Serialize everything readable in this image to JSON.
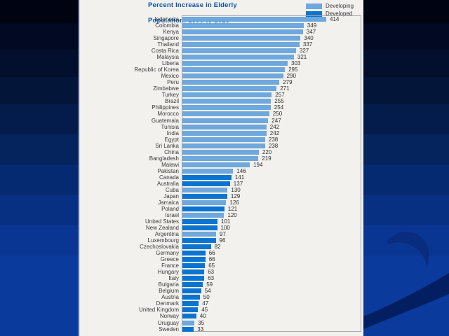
{
  "slide": {
    "title_line1": "Percent Increase in Elderly",
    "title_line2": "Population:  1990 to 2025"
  },
  "colors": {
    "developing": "#6FA8DC",
    "developed": "#0B74D1",
    "title": "#0A55A8",
    "panel_bg": "#F2F1EE",
    "background_top": "#000311",
    "background_bottom": "#0B3A9D"
  },
  "chart_data": {
    "type": "bar",
    "orientation": "horizontal",
    "title": "Percent Increase in Elderly Population: 1990 to 2025",
    "xlabel": "",
    "ylabel": "",
    "xlim": [
      0,
      430
    ],
    "grid": false,
    "legend_position": "top-right",
    "legend": [
      {
        "label": "Developing",
        "group": "developing",
        "color": "#6FA8DC"
      },
      {
        "label": "Developed",
        "group": "developed",
        "color": "#0B74D1"
      }
    ],
    "countries": [
      {
        "name": "Indonesia",
        "value": 414,
        "group": "developing"
      },
      {
        "name": "Colombia",
        "value": 349,
        "group": "developing"
      },
      {
        "name": "Kenya",
        "value": 347,
        "group": "developing"
      },
      {
        "name": "Singapore",
        "value": 340,
        "group": "developing"
      },
      {
        "name": "Thailand",
        "value": 337,
        "group": "developing"
      },
      {
        "name": "Costa Rica",
        "value": 327,
        "group": "developing"
      },
      {
        "name": "Malaysia",
        "value": 321,
        "group": "developing"
      },
      {
        "name": "Liberia",
        "value": 303,
        "group": "developing"
      },
      {
        "name": "Republic of Korea",
        "value": 295,
        "group": "developing"
      },
      {
        "name": "Mexico",
        "value": 290,
        "group": "developing"
      },
      {
        "name": "Peru",
        "value": 279,
        "group": "developing"
      },
      {
        "name": "Zimbabwe",
        "value": 271,
        "group": "developing"
      },
      {
        "name": "Turkey",
        "value": 257,
        "group": "developing"
      },
      {
        "name": "Brazil",
        "value": 255,
        "group": "developing"
      },
      {
        "name": "Philippines",
        "value": 254,
        "group": "developing"
      },
      {
        "name": "Morocco",
        "value": 250,
        "group": "developing"
      },
      {
        "name": "Guatemala",
        "value": 247,
        "group": "developing"
      },
      {
        "name": "Tunisia",
        "value": 242,
        "group": "developing"
      },
      {
        "name": "India",
        "value": 242,
        "group": "developing"
      },
      {
        "name": "Egypt",
        "value": 238,
        "group": "developing"
      },
      {
        "name": "Sri Lanka",
        "value": 238,
        "group": "developing"
      },
      {
        "name": "China",
        "value": 220,
        "group": "developing"
      },
      {
        "name": "Bangladesh",
        "value": 219,
        "group": "developing"
      },
      {
        "name": "Malawi",
        "value": 194,
        "group": "developing"
      },
      {
        "name": "Pakistan",
        "value": 146,
        "group": "developing"
      },
      {
        "name": "Canada",
        "value": 141,
        "group": "developed"
      },
      {
        "name": "Australia",
        "value": 137,
        "group": "developed"
      },
      {
        "name": "Cuba",
        "value": 130,
        "group": "developing"
      },
      {
        "name": "Japan",
        "value": 129,
        "group": "developed"
      },
      {
        "name": "Jamaica",
        "value": 126,
        "group": "developing"
      },
      {
        "name": "Poland",
        "value": 121,
        "group": "developed"
      },
      {
        "name": "Israel",
        "value": 120,
        "group": "developing"
      },
      {
        "name": "United States",
        "value": 101,
        "group": "developed"
      },
      {
        "name": "New Zealand",
        "value": 100,
        "group": "developed"
      },
      {
        "name": "Argentina",
        "value": 97,
        "group": "developing"
      },
      {
        "name": "Luxembourg",
        "value": 96,
        "group": "developed"
      },
      {
        "name": "Czechoslovakia",
        "value": 82,
        "group": "developed"
      },
      {
        "name": "Germany",
        "value": 66,
        "group": "developed"
      },
      {
        "name": "Greece",
        "value": 66,
        "group": "developed"
      },
      {
        "name": "France",
        "value": 65,
        "group": "developed"
      },
      {
        "name": "Hungary",
        "value": 63,
        "group": "developed"
      },
      {
        "name": "Italy",
        "value": 63,
        "group": "developed"
      },
      {
        "name": "Bulgaria",
        "value": 59,
        "group": "developed"
      },
      {
        "name": "Belgium",
        "value": 54,
        "group": "developed"
      },
      {
        "name": "Austria",
        "value": 50,
        "group": "developed"
      },
      {
        "name": "Denmark",
        "value": 47,
        "group": "developed"
      },
      {
        "name": "United Kingdom",
        "value": 45,
        "group": "developed"
      },
      {
        "name": "Norway",
        "value": 40,
        "group": "developed"
      },
      {
        "name": "Uruguay",
        "value": 35,
        "group": "developing"
      },
      {
        "name": "Sweden",
        "value": 33,
        "group": "developed"
      }
    ]
  }
}
